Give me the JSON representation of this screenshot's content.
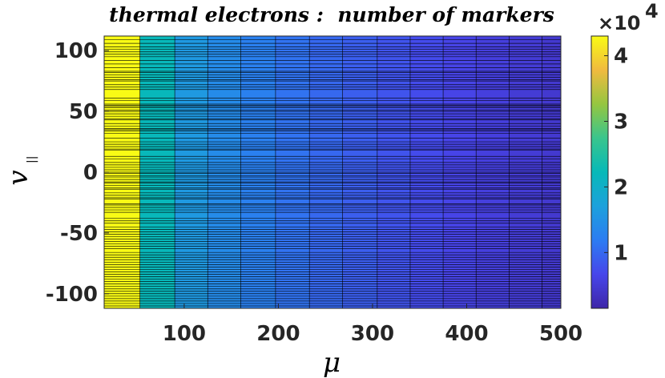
{
  "chart_data": {
    "type": "heatmap",
    "title": "thermal electrons :  number of markers",
    "xlabel": "μ",
    "ylabel_main": "v",
    "ylabel_sub": "||",
    "xlim": [
      15,
      500
    ],
    "ylim": [
      -112,
      112
    ],
    "xticks": [
      100,
      200,
      300,
      400,
      500
    ],
    "yticks": [
      100,
      50,
      0,
      -50,
      -100
    ],
    "colorbar": {
      "ticks": [
        4,
        3,
        2,
        1
      ],
      "clim": [
        1500,
        43000
      ],
      "multiplier": "×10",
      "exponent": "4"
    },
    "x_edges": [
      15,
      53,
      90,
      125,
      160,
      197,
      233,
      268,
      305,
      340,
      375,
      410,
      445,
      480,
      500
    ],
    "column_values": [
      43000,
      22000,
      16000,
      14000,
      12500,
      11000,
      10000,
      9000,
      8000,
      7200,
      6400,
      5600,
      5000,
      4500
    ],
    "y_grid_lines": [
      109,
      106,
      103,
      101,
      99,
      97,
      95,
      92,
      89,
      86,
      83,
      82,
      80,
      78,
      76,
      75,
      72,
      70,
      68,
      61,
      59,
      56,
      55,
      54,
      53,
      51,
      50,
      48,
      46,
      44,
      43,
      40,
      38,
      36,
      35,
      34,
      32,
      28,
      25,
      23,
      21,
      19,
      18,
      13,
      11,
      8,
      6,
      4,
      2,
      0,
      -1,
      -3,
      -4,
      -6,
      -8,
      -9,
      -11,
      -13,
      -14,
      -17,
      -19,
      -21,
      -22,
      -26,
      -27,
      -29,
      -31,
      -33,
      -38,
      -40,
      -42,
      -45,
      -47,
      -49,
      -51,
      -53,
      -55,
      -57,
      -59,
      -61,
      -63,
      -66,
      -68,
      -70,
      -72,
      -74,
      -76,
      -78,
      -80,
      -82,
      -84,
      -86,
      -88,
      -90,
      -92,
      -94,
      -96,
      -98,
      -100,
      -102,
      -104,
      -106,
      -108,
      -110
    ]
  }
}
